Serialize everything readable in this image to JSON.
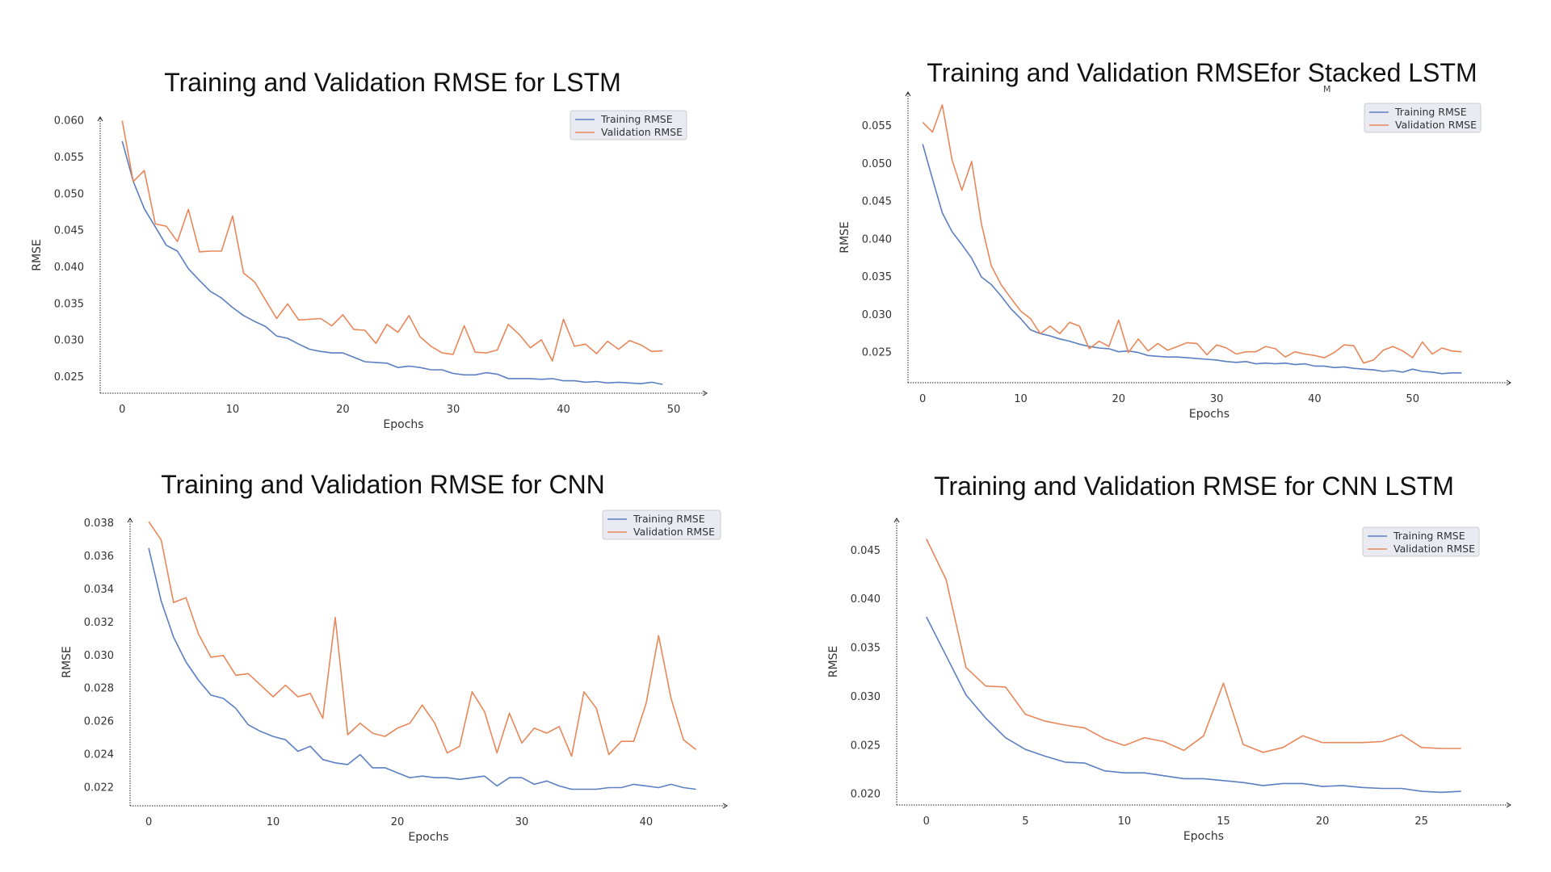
{
  "colors": {
    "training": "#5b7fc0",
    "validation": "#e8875a",
    "axis": "#222222"
  },
  "stray_mark": "M",
  "chart_data": [
    {
      "type": "line",
      "title": "Training and Validation RMSE for LSTM",
      "xlabel": "Epochs",
      "ylabel": "RMSE",
      "xlim": [
        -2,
        53
      ],
      "ylim": [
        0.0228,
        0.0605
      ],
      "xticks": [
        0,
        10,
        20,
        30,
        40,
        50
      ],
      "yticks": [
        0.025,
        0.03,
        0.035,
        0.04,
        0.045,
        0.05,
        0.055,
        0.06
      ],
      "ytick_format": 3,
      "legend": "top-right",
      "series": [
        {
          "name": "Training RMSE",
          "color": "#5b7fc0",
          "values": [
            0.0572,
            0.0517,
            0.048,
            0.0455,
            0.043,
            0.0422,
            0.0398,
            0.0382,
            0.0367,
            0.0358,
            0.0345,
            0.0334,
            0.0326,
            0.0319,
            0.0306,
            0.0303,
            0.0295,
            0.0288,
            0.0285,
            0.0283,
            0.0283,
            0.0277,
            0.0271,
            0.027,
            0.0269,
            0.0263,
            0.0265,
            0.0263,
            0.026,
            0.026,
            0.0255,
            0.0253,
            0.0253,
            0.0256,
            0.0254,
            0.0248,
            0.0248,
            0.0248,
            0.0247,
            0.0248,
            0.0245,
            0.0245,
            0.0243,
            0.0244,
            0.0242,
            0.0243,
            0.0242,
            0.0241,
            0.0243,
            0.024
          ]
        },
        {
          "name": "Validation RMSE",
          "color": "#e8875a",
          "values": [
            0.06,
            0.0517,
            0.0532,
            0.0459,
            0.0456,
            0.0435,
            0.0479,
            0.0421,
            0.0422,
            0.0422,
            0.047,
            0.0392,
            0.038,
            0.0355,
            0.033,
            0.035,
            0.0328,
            0.0329,
            0.033,
            0.032,
            0.0335,
            0.0315,
            0.0314,
            0.0296,
            0.0322,
            0.0311,
            0.0334,
            0.0305,
            0.0292,
            0.0283,
            0.0281,
            0.032,
            0.0284,
            0.0283,
            0.0287,
            0.0322,
            0.0308,
            0.029,
            0.0301,
            0.0272,
            0.0329,
            0.0292,
            0.0295,
            0.0282,
            0.0299,
            0.0288,
            0.03,
            0.0294,
            0.0285,
            0.0286
          ]
        }
      ]
    },
    {
      "type": "line",
      "title": "Training and Validation RMSEfor Stacked LSTM",
      "xlabel": "Epochs",
      "ylabel": "RMSE",
      "xlim": [
        -1.5,
        60
      ],
      "ylim": [
        0.021,
        0.0595
      ],
      "xticks": [
        0,
        10,
        20,
        30,
        40,
        50
      ],
      "yticks": [
        0.025,
        0.03,
        0.035,
        0.04,
        0.045,
        0.05,
        0.055
      ],
      "ytick_format": 3,
      "legend": "top-right",
      "series": [
        {
          "name": "Training RMSE",
          "color": "#5b7fc0",
          "values": [
            0.0526,
            0.048,
            0.0435,
            0.041,
            0.0393,
            0.0375,
            0.035,
            0.034,
            0.0325,
            0.0308,
            0.0295,
            0.028,
            0.0275,
            0.0272,
            0.0268,
            0.0265,
            0.0261,
            0.0258,
            0.0256,
            0.0255,
            0.0251,
            0.0252,
            0.025,
            0.0246,
            0.0245,
            0.0244,
            0.0244,
            0.0243,
            0.0242,
            0.0241,
            0.024,
            0.0238,
            0.0237,
            0.0238,
            0.0235,
            0.0236,
            0.0235,
            0.0236,
            0.0234,
            0.0235,
            0.0232,
            0.0232,
            0.023,
            0.0231,
            0.0229,
            0.0228,
            0.0227,
            0.0225,
            0.0226,
            0.0224,
            0.0228,
            0.0225,
            0.0224,
            0.0222,
            0.0223,
            0.0223
          ]
        },
        {
          "name": "Validation RMSE",
          "color": "#e8875a",
          "values": [
            0.0555,
            0.0542,
            0.0578,
            0.0505,
            0.0465,
            0.0503,
            0.042,
            0.0365,
            0.034,
            0.0322,
            0.0305,
            0.0295,
            0.0275,
            0.0285,
            0.0275,
            0.029,
            0.0285,
            0.0255,
            0.0265,
            0.0258,
            0.0293,
            0.025,
            0.0268,
            0.0252,
            0.0262,
            0.0253,
            0.0258,
            0.0263,
            0.0262,
            0.0247,
            0.026,
            0.0256,
            0.0248,
            0.0251,
            0.0251,
            0.0258,
            0.0255,
            0.0244,
            0.0251,
            0.0248,
            0.0246,
            0.0243,
            0.025,
            0.026,
            0.0259,
            0.0236,
            0.024,
            0.0253,
            0.0258,
            0.0252,
            0.0243,
            0.0264,
            0.0248,
            0.0256,
            0.0252,
            0.0251
          ]
        }
      ]
    },
    {
      "type": "line",
      "title": "Training and Validation RMSE for CNN",
      "xlabel": "Epochs",
      "ylabel": "RMSE",
      "xlim": [
        -1.5,
        46.5
      ],
      "ylim": [
        0.0209,
        0.0383
      ],
      "xticks": [
        0,
        10,
        20,
        30,
        40
      ],
      "yticks": [
        0.022,
        0.024,
        0.026,
        0.028,
        0.03,
        0.032,
        0.034,
        0.036,
        0.038
      ],
      "ytick_format": 3,
      "legend": "top-right",
      "series": [
        {
          "name": "Training RMSE",
          "color": "#5b7fc0",
          "values": [
            0.0365,
            0.0333,
            0.0311,
            0.0296,
            0.0285,
            0.0276,
            0.0274,
            0.0268,
            0.0258,
            0.0254,
            0.0251,
            0.0249,
            0.0242,
            0.0245,
            0.0237,
            0.0235,
            0.0234,
            0.024,
            0.0232,
            0.0232,
            0.0229,
            0.0226,
            0.0227,
            0.0226,
            0.0226,
            0.0225,
            0.0226,
            0.0227,
            0.0221,
            0.0226,
            0.0226,
            0.0222,
            0.0224,
            0.0221,
            0.0219,
            0.0219,
            0.0219,
            0.022,
            0.022,
            0.0222,
            0.0221,
            0.022,
            0.0222,
            0.022,
            0.0219
          ]
        },
        {
          "name": "Validation RMSE",
          "color": "#e8875a",
          "values": [
            0.0381,
            0.037,
            0.0332,
            0.0335,
            0.0313,
            0.0299,
            0.03,
            0.0288,
            0.0289,
            0.0282,
            0.0275,
            0.0282,
            0.0275,
            0.0277,
            0.0262,
            0.0323,
            0.0252,
            0.0259,
            0.0253,
            0.0251,
            0.0256,
            0.0259,
            0.027,
            0.0259,
            0.0241,
            0.0245,
            0.0278,
            0.0266,
            0.0241,
            0.0265,
            0.0247,
            0.0256,
            0.0253,
            0.0257,
            0.0239,
            0.0278,
            0.0268,
            0.024,
            0.0248,
            0.0248,
            0.0271,
            0.0312,
            0.0274,
            0.0249,
            0.0243
          ]
        }
      ]
    },
    {
      "type": "line",
      "title": "Training and Validation RMSE for CNN LSTM",
      "xlabel": "Epochs",
      "ylabel": "RMSE",
      "xlim": [
        -1.5,
        29.5
      ],
      "ylim": [
        0.0189,
        0.0483
      ],
      "xticks": [
        0,
        5,
        10,
        15,
        20,
        25
      ],
      "yticks": [
        0.02,
        0.025,
        0.03,
        0.035,
        0.04,
        0.045
      ],
      "ytick_format": 3,
      "legend": "top-right",
      "series": [
        {
          "name": "Training RMSE",
          "color": "#5b7fc0",
          "values": [
            0.0382,
            0.0342,
            0.0302,
            0.0278,
            0.0258,
            0.0246,
            0.0239,
            0.0233,
            0.0232,
            0.0224,
            0.0222,
            0.0222,
            0.0219,
            0.0216,
            0.0216,
            0.0214,
            0.0212,
            0.0209,
            0.0211,
            0.0211,
            0.0208,
            0.0209,
            0.0207,
            0.0206,
            0.0206,
            0.0203,
            0.0202,
            0.0203
          ]
        },
        {
          "name": "Validation RMSE",
          "color": "#e8875a",
          "values": [
            0.0462,
            0.042,
            0.033,
            0.0311,
            0.031,
            0.0282,
            0.0275,
            0.0271,
            0.0268,
            0.0257,
            0.025,
            0.0258,
            0.0254,
            0.0245,
            0.026,
            0.0314,
            0.0251,
            0.0243,
            0.0248,
            0.026,
            0.0253,
            0.0253,
            0.0253,
            0.0254,
            0.0261,
            0.0248,
            0.0247,
            0.0247
          ]
        }
      ]
    }
  ]
}
